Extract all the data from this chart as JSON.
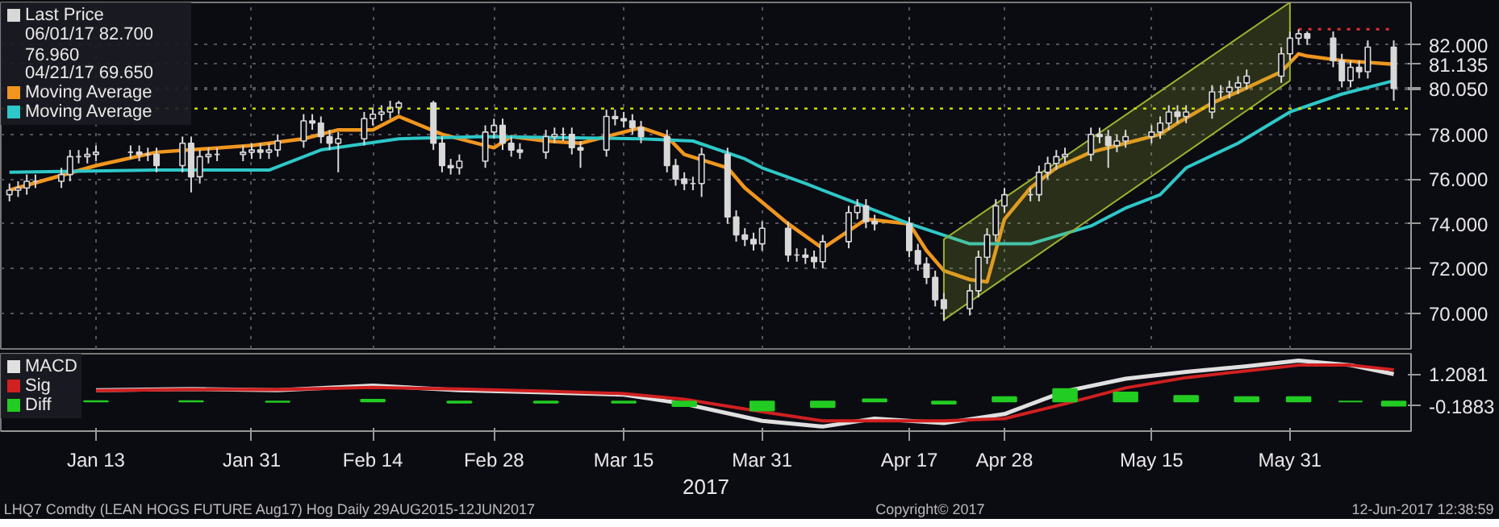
{
  "chart_data": [
    {
      "type": "candlestick",
      "xlim": [
        "2017-01-02",
        "2017-06-14"
      ],
      "ylim": [
        68.4,
        83.9
      ],
      "xticks": [
        {
          "value": "2017-01-13",
          "label": null
        },
        {
          "value": "2017-01-31",
          "label": null
        },
        {
          "value": "2017-02-14",
          "label": null
        },
        {
          "value": "2017-02-28",
          "label": null
        },
        {
          "value": "2017-03-15",
          "label": null
        },
        {
          "value": "2017-03-31",
          "label": null
        },
        {
          "value": "2017-04-17",
          "label": null
        },
        {
          "value": "2017-04-28",
          "label": null
        },
        {
          "value": "2017-05-15",
          "label": null
        },
        {
          "value": "2017-05-31",
          "label": null
        }
      ],
      "yticks": [
        {
          "value": 70,
          "label": "70.000"
        },
        {
          "value": 72,
          "label": "72.000"
        },
        {
          "value": 74,
          "label": "74.000"
        },
        {
          "value": 76,
          "label": "76.000"
        },
        {
          "value": 78,
          "label": "78.000"
        },
        {
          "value": 80,
          "label": null
        },
        {
          "value": 80.05,
          "label": "80.050"
        },
        {
          "value": 81.135,
          "label": "81.135"
        },
        {
          "value": 82,
          "label": "82.000"
        }
      ],
      "tick_labels": "y",
      "grid": true,
      "legend": "top left",
      "annotations": [
        "06/01/17 82.700",
        "76.960",
        "04/21/17 69.650"
      ],
      "ref_lines": [
        {
          "axis": "y",
          "value": 79.15,
          "color": "#c8dc00",
          "line_style": "dotted"
        }
      ],
      "series": [
        {
          "type": "candlestick",
          "name": "Last Price",
          "color": "#d8d8d8",
          "x": [
            "2017-01-03",
            "2017-01-04",
            "2017-01-05",
            "2017-01-06",
            "2017-01-09",
            "2017-01-10",
            "2017-01-11",
            "2017-01-12",
            "2017-01-13",
            "2017-01-17",
            "2017-01-18",
            "2017-01-19",
            "2017-01-20",
            "2017-01-23",
            "2017-01-24",
            "2017-01-25",
            "2017-01-26",
            "2017-01-27",
            "2017-01-30",
            "2017-01-31",
            "2017-02-01",
            "2017-02-02",
            "2017-02-03",
            "2017-02-06",
            "2017-02-07",
            "2017-02-08",
            "2017-02-09",
            "2017-02-10",
            "2017-02-13",
            "2017-02-14",
            "2017-02-15",
            "2017-02-16",
            "2017-02-17",
            "2017-02-21",
            "2017-02-22",
            "2017-02-23",
            "2017-02-24",
            "2017-02-27",
            "2017-02-28",
            "2017-03-01",
            "2017-03-02",
            "2017-03-03",
            "2017-03-06",
            "2017-03-07",
            "2017-03-08",
            "2017-03-09",
            "2017-03-10",
            "2017-03-13",
            "2017-03-14",
            "2017-03-15",
            "2017-03-16",
            "2017-03-17",
            "2017-03-20",
            "2017-03-21",
            "2017-03-22",
            "2017-03-23",
            "2017-03-24",
            "2017-03-27",
            "2017-03-28",
            "2017-03-29",
            "2017-03-30",
            "2017-03-31",
            "2017-04-03",
            "2017-04-04",
            "2017-04-05",
            "2017-04-06",
            "2017-04-07",
            "2017-04-10",
            "2017-04-11",
            "2017-04-12",
            "2017-04-13",
            "2017-04-17",
            "2017-04-18",
            "2017-04-19",
            "2017-04-20",
            "2017-04-21",
            "2017-04-24",
            "2017-04-25",
            "2017-04-26",
            "2017-04-27",
            "2017-04-28",
            "2017-05-01",
            "2017-05-02",
            "2017-05-03",
            "2017-05-04",
            "2017-05-05",
            "2017-05-08",
            "2017-05-09",
            "2017-05-10",
            "2017-05-11",
            "2017-05-12",
            "2017-05-15",
            "2017-05-16",
            "2017-05-17",
            "2017-05-18",
            "2017-05-19",
            "2017-05-22",
            "2017-05-23",
            "2017-05-24",
            "2017-05-25",
            "2017-05-26",
            "2017-05-30",
            "2017-05-31",
            "2017-06-01",
            "2017-06-02",
            "2017-06-05",
            "2017-06-06",
            "2017-06-07",
            "2017-06-08",
            "2017-06-09",
            "2017-06-12"
          ],
          "ohlc": [
            [
              75.3,
              75.8,
              75.0,
              75.5
            ],
            [
              75.5,
              75.9,
              75.2,
              75.6
            ],
            [
              75.6,
              76.2,
              75.3,
              75.9
            ],
            [
              75.9,
              76.2,
              75.6,
              75.9
            ],
            [
              75.9,
              76.5,
              75.6,
              76.2
            ],
            [
              76.2,
              77.3,
              75.9,
              77.0
            ],
            [
              77.0,
              77.3,
              76.7,
              77.0
            ],
            [
              77.0,
              77.4,
              76.7,
              77.1
            ],
            [
              77.1,
              77.5,
              76.8,
              77.2
            ],
            [
              77.2,
              77.5,
              76.9,
              77.2
            ],
            [
              77.2,
              77.5,
              76.8,
              77.1
            ],
            [
              77.1,
              77.4,
              76.8,
              77.1
            ],
            [
              77.1,
              77.4,
              76.3,
              76.6
            ],
            [
              76.6,
              77.9,
              76.3,
              77.6
            ],
            [
              77.6,
              77.9,
              75.4,
              76.1
            ],
            [
              76.1,
              77.3,
              75.8,
              77.0
            ],
            [
              77.0,
              77.4,
              76.7,
              77.1
            ],
            [
              77.1,
              77.4,
              76.8,
              77.1
            ],
            [
              77.1,
              77.5,
              76.8,
              77.2
            ],
            [
              77.2,
              77.6,
              76.9,
              77.3
            ],
            [
              77.3,
              77.6,
              76.9,
              77.2
            ],
            [
              77.2,
              77.6,
              76.9,
              77.3
            ],
            [
              77.3,
              78.0,
              77.0,
              77.7
            ],
            [
              77.7,
              78.9,
              77.4,
              78.6
            ],
            [
              78.6,
              78.9,
              78.2,
              78.5
            ],
            [
              78.5,
              78.8,
              77.6,
              77.9
            ],
            [
              77.9,
              78.2,
              77.3,
              77.6
            ],
            [
              77.6,
              78.1,
              76.3,
              77.8
            ],
            [
              77.8,
              79.0,
              77.5,
              78.7
            ],
            [
              78.7,
              79.2,
              78.4,
              78.9
            ],
            [
              78.9,
              79.3,
              78.6,
              79.0
            ],
            [
              79.0,
              79.5,
              78.7,
              79.2
            ],
            [
              79.2,
              79.5,
              78.9,
              79.4
            ],
            [
              79.4,
              79.5,
              77.3,
              77.6
            ],
            [
              77.6,
              77.9,
              76.3,
              76.6
            ],
            [
              76.6,
              76.9,
              76.2,
              76.5
            ],
            [
              76.5,
              77.1,
              76.2,
              76.8
            ],
            [
              76.8,
              78.4,
              76.5,
              78.1
            ],
            [
              78.1,
              78.7,
              77.8,
              78.4
            ],
            [
              78.4,
              78.7,
              77.3,
              77.6
            ],
            [
              77.6,
              77.9,
              77.0,
              77.3
            ],
            [
              77.3,
              77.6,
              76.9,
              77.2
            ],
            [
              77.2,
              78.2,
              76.9,
              77.9
            ],
            [
              77.9,
              78.3,
              77.6,
              78.0
            ],
            [
              78.0,
              78.3,
              77.7,
              78.0
            ],
            [
              78.0,
              78.3,
              77.1,
              77.4
            ],
            [
              77.4,
              77.7,
              76.5,
              77.3
            ],
            [
              77.3,
              79.1,
              77.0,
              78.8
            ],
            [
              78.8,
              79.1,
              78.4,
              78.7
            ],
            [
              78.7,
              79.0,
              78.3,
              78.6
            ],
            [
              78.6,
              78.9,
              78.0,
              78.3
            ],
            [
              78.3,
              78.6,
              77.6,
              77.9
            ],
            [
              77.9,
              78.2,
              76.3,
              76.6
            ],
            [
              76.6,
              76.9,
              75.7,
              76.0
            ],
            [
              76.0,
              76.3,
              75.5,
              75.8
            ],
            [
              75.8,
              76.1,
              75.5,
              75.8
            ],
            [
              75.8,
              77.4,
              75.2,
              77.1
            ],
            [
              77.1,
              77.4,
              74.0,
              74.3
            ],
            [
              74.3,
              74.6,
              73.2,
              73.5
            ],
            [
              73.5,
              73.8,
              73.0,
              73.3
            ],
            [
              73.3,
              73.6,
              72.8,
              73.1
            ],
            [
              73.1,
              74.1,
              72.8,
              73.8
            ],
            [
              73.8,
              74.1,
              72.3,
              72.6
            ],
            [
              72.6,
              72.9,
              72.3,
              72.6
            ],
            [
              72.6,
              72.9,
              72.2,
              72.5
            ],
            [
              72.5,
              72.8,
              72.0,
              72.3
            ],
            [
              72.3,
              73.5,
              72.0,
              73.2
            ],
            [
              73.2,
              74.8,
              72.9,
              74.5
            ],
            [
              74.5,
              75.1,
              74.2,
              74.8
            ],
            [
              74.8,
              75.1,
              73.8,
              74.1
            ],
            [
              74.1,
              74.4,
              73.7,
              74.0
            ],
            [
              74.0,
              74.3,
              72.5,
              72.8
            ],
            [
              72.8,
              73.1,
              71.9,
              72.2
            ],
            [
              72.2,
              72.5,
              71.3,
              71.6
            ],
            [
              71.6,
              71.9,
              70.3,
              70.6
            ],
            [
              70.6,
              70.9,
              69.65,
              70.2
            ],
            [
              70.2,
              71.3,
              69.9,
              71.0
            ],
            [
              71.0,
              72.8,
              70.7,
              72.5
            ],
            [
              72.5,
              73.8,
              72.2,
              73.5
            ],
            [
              73.5,
              75.1,
              73.2,
              74.8
            ],
            [
              74.8,
              75.6,
              74.5,
              75.3
            ],
            [
              75.3,
              75.6,
              75.0,
              75.3
            ],
            [
              75.3,
              76.6,
              75.0,
              76.3
            ],
            [
              76.3,
              77.0,
              76.0,
              76.7
            ],
            [
              76.7,
              77.3,
              76.4,
              77.0
            ],
            [
              77.0,
              77.4,
              76.7,
              77.1
            ],
            [
              77.1,
              78.3,
              76.8,
              78.0
            ],
            [
              78.0,
              78.3,
              77.6,
              77.9
            ],
            [
              77.9,
              78.2,
              76.5,
              77.5
            ],
            [
              77.5,
              78.0,
              77.2,
              77.7
            ],
            [
              77.7,
              78.2,
              77.4,
              77.9
            ],
            [
              77.9,
              78.4,
              77.6,
              78.1
            ],
            [
              78.1,
              78.8,
              77.8,
              78.5
            ],
            [
              78.5,
              79.3,
              78.2,
              79.0
            ],
            [
              79.0,
              79.3,
              78.5,
              78.8
            ],
            [
              78.8,
              79.3,
              78.5,
              79.0
            ],
            [
              79.0,
              80.2,
              78.7,
              79.9
            ],
            [
              79.9,
              80.2,
              79.6,
              79.9
            ],
            [
              79.9,
              80.4,
              79.6,
              80.1
            ],
            [
              80.1,
              80.6,
              79.8,
              80.3
            ],
            [
              80.3,
              80.9,
              80.0,
              80.6
            ],
            [
              80.6,
              81.9,
              80.3,
              81.6
            ],
            [
              81.6,
              82.6,
              81.3,
              82.3
            ],
            [
              82.3,
              82.7,
              82.0,
              82.5
            ],
            [
              82.5,
              82.6,
              82.0,
              82.3
            ],
            [
              82.3,
              82.6,
              81.0,
              81.3
            ],
            [
              81.3,
              81.6,
              80.1,
              80.4
            ],
            [
              80.4,
              81.3,
              80.1,
              81.0
            ],
            [
              81.0,
              81.3,
              80.5,
              80.8
            ],
            [
              80.8,
              82.2,
              80.5,
              81.9
            ],
            [
              81.9,
              82.2,
              79.5,
              80.05
            ]
          ]
        },
        {
          "type": "line",
          "name": "Moving Average",
          "color": "#f0961e",
          "x": [
            "2017-01-03",
            "2017-01-13",
            "2017-01-20",
            "2017-01-31",
            "2017-02-06",
            "2017-02-10",
            "2017-02-14",
            "2017-02-17",
            "2017-02-22",
            "2017-02-28",
            "2017-03-02",
            "2017-03-06",
            "2017-03-10",
            "2017-03-15",
            "2017-03-17",
            "2017-03-20",
            "2017-03-22",
            "2017-03-27",
            "2017-03-29",
            "2017-04-03",
            "2017-04-07",
            "2017-04-12",
            "2017-04-17",
            "2017-04-19",
            "2017-04-21",
            "2017-04-24",
            "2017-04-26",
            "2017-04-28",
            "2017-05-01",
            "2017-05-04",
            "2017-05-08",
            "2017-05-12",
            "2017-05-16",
            "2017-05-18",
            "2017-05-22",
            "2017-05-25",
            "2017-05-30",
            "2017-06-01",
            "2017-06-02",
            "2017-06-06",
            "2017-06-12"
          ],
          "values": [
            75.5,
            76.6,
            77.2,
            77.5,
            77.8,
            78.2,
            78.2,
            78.8,
            78.0,
            77.4,
            77.9,
            77.7,
            77.6,
            78.1,
            78.3,
            77.9,
            77.1,
            76.5,
            75.6,
            74.0,
            72.9,
            74.2,
            74.0,
            72.8,
            71.9,
            71.5,
            71.4,
            74.2,
            75.6,
            76.5,
            77.2,
            77.6,
            78.0,
            78.5,
            79.4,
            79.9,
            80.8,
            81.6,
            81.5,
            81.3,
            81.135
          ]
        },
        {
          "type": "line",
          "name": "Moving Average",
          "color": "#2ec8c8",
          "x": [
            "2017-01-03",
            "2017-01-20",
            "2017-02-02",
            "2017-02-08",
            "2017-02-17",
            "2017-02-27",
            "2017-03-17",
            "2017-03-23",
            "2017-03-29",
            "2017-03-31",
            "2017-04-05",
            "2017-04-11",
            "2017-04-17",
            "2017-04-24",
            "2017-05-01",
            "2017-05-08",
            "2017-05-12",
            "2017-05-16",
            "2017-05-19",
            "2017-05-25",
            "2017-05-31",
            "2017-06-06",
            "2017-06-12"
          ],
          "values": [
            76.3,
            76.4,
            76.4,
            77.3,
            77.8,
            77.9,
            77.8,
            77.7,
            76.9,
            76.5,
            75.8,
            74.9,
            74.0,
            73.1,
            73.1,
            73.9,
            74.7,
            75.3,
            76.5,
            77.6,
            79.0,
            79.8,
            80.4
          ]
        },
        {
          "type": "line",
          "color": "#9bb030",
          "x": [
            "2017-04-21",
            "2017-05-31"
          ],
          "values": [
            null,
            null
          ],
          "lower": [
            69.7,
            80.4
          ],
          "upper": [
            73.3,
            83.9
          ]
        },
        {
          "type": "line",
          "color": "#e03030",
          "line_style": "dotted",
          "x": [
            "2017-06-01",
            "2017-06-12"
          ],
          "values": [
            82.7,
            82.7
          ]
        }
      ]
    },
    {
      "type": "line",
      "xlim": [
        "2017-01-02",
        "2017-06-14"
      ],
      "ylim": [
        -1.3,
        2.1
      ],
      "xticks": [
        {
          "value": "2017-01-13",
          "label": "Jan 13"
        },
        {
          "value": "2017-01-31",
          "label": "Jan 31"
        },
        {
          "value": "2017-02-14",
          "label": "Feb 14"
        },
        {
          "value": "2017-02-28",
          "label": "Feb 28"
        },
        {
          "value": "2017-03-15",
          "label": "Mar 15"
        },
        {
          "value": "2017-03-31",
          "label": "Mar 31"
        },
        {
          "value": "2017-04-17",
          "label": "Apr 17"
        },
        {
          "value": "2017-04-28",
          "label": "Apr 28"
        },
        {
          "value": "2017-05-15",
          "label": "May 15"
        },
        {
          "value": "2017-05-31",
          "label": "May 31"
        }
      ],
      "yticks": [
        {
          "value": 1.2081,
          "label": "1.2081"
        },
        {
          "value": -0.1883,
          "label": "-0.1883"
        }
      ],
      "xlabel": "2017",
      "legend": "top left",
      "annotations": [
        "LHQ7 Comdty (LEAN HOGS FUTURE  Aug17) Hog  Daily 29AUG2015-12JUN2017",
        "Copyright© 2017",
        "12-Jun-2017 12:38:59"
      ],
      "x": [
        "2017-01-13",
        "2017-01-24",
        "2017-02-03",
        "2017-02-14",
        "2017-02-24",
        "2017-03-06",
        "2017-03-15",
        "2017-03-22",
        "2017-03-31",
        "2017-04-07",
        "2017-04-13",
        "2017-04-21",
        "2017-04-28",
        "2017-05-05",
        "2017-05-12",
        "2017-05-19",
        "2017-05-26",
        "2017-06-01",
        "2017-06-07",
        "2017-06-12"
      ],
      "series": [
        {
          "name": "MACD",
          "color": "#e0e0e0",
          "values": [
            0.5,
            0.55,
            0.5,
            0.7,
            0.5,
            0.4,
            0.3,
            -0.1,
            -0.85,
            -1.1,
            -0.75,
            -0.95,
            -0.55,
            0.45,
            1.0,
            1.3,
            1.55,
            1.8,
            1.6,
            1.2081
          ]
        },
        {
          "name": "Sig",
          "color": "#d02020",
          "values": [
            0.48,
            0.53,
            0.52,
            0.62,
            0.55,
            0.45,
            0.35,
            0.1,
            -0.45,
            -0.85,
            -0.85,
            -0.85,
            -0.75,
            -0.1,
            0.6,
            1.05,
            1.35,
            1.6,
            1.6,
            1.3964
          ]
        },
        {
          "name": "Diff",
          "type": "bar",
          "color": "#22cc22",
          "values": [
            0.02,
            0.02,
            -0.02,
            0.08,
            -0.05,
            -0.05,
            -0.05,
            -0.2,
            -0.4,
            -0.25,
            0.1,
            -0.1,
            0.2,
            0.55,
            0.4,
            0.25,
            0.2,
            0.2,
            0.0,
            -0.1883
          ]
        }
      ]
    }
  ]
}
